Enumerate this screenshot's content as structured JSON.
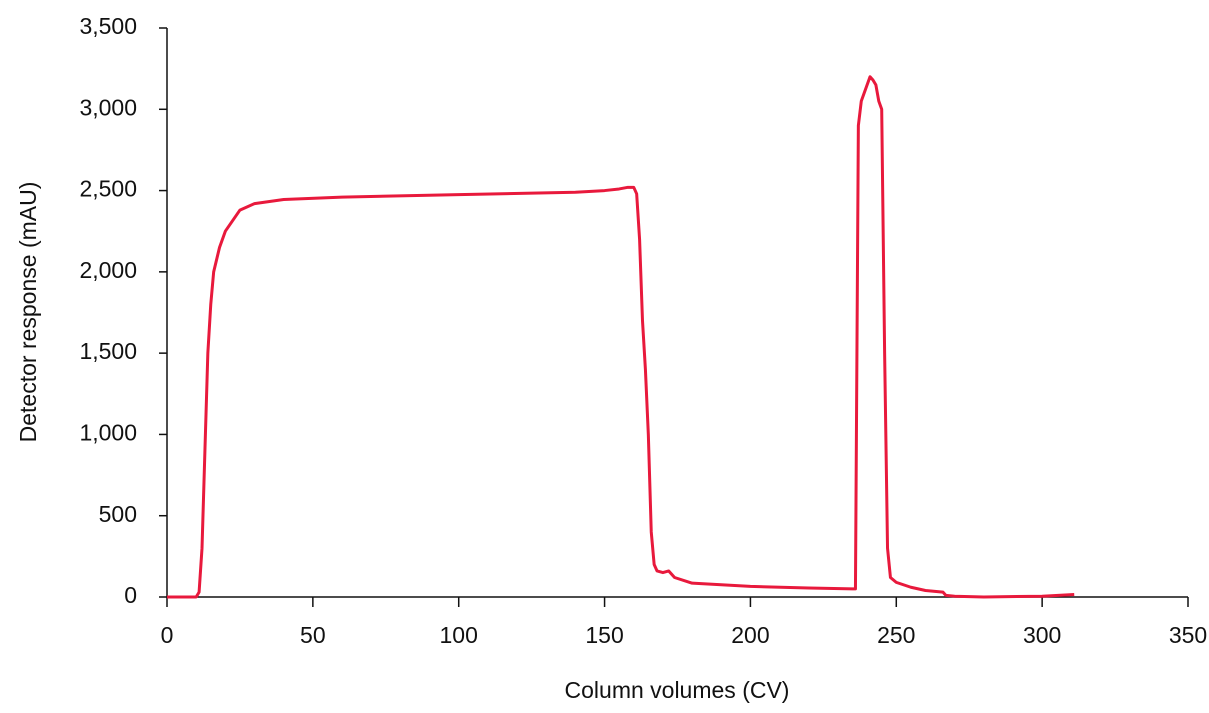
{
  "chart_data": {
    "type": "line",
    "x_label": "Column volumes (CV)",
    "y_label": "Detector response (mAU)",
    "xlim": [
      0,
      350
    ],
    "xticks": [
      0,
      50,
      100,
      150,
      200,
      250,
      300,
      350
    ],
    "ylim": [
      0,
      3500
    ],
    "yticks": [
      0,
      500,
      {
        "value": 1000,
        "label": "1,000"
      },
      {
        "value": 1500,
        "label": "1,500"
      },
      {
        "value": 2000,
        "label": "2,000"
      },
      {
        "value": 2500,
        "label": "2,500"
      },
      {
        "value": 3000,
        "label": "3,000"
      },
      {
        "value": 3500,
        "label": "3,500"
      }
    ],
    "grid": false,
    "series": [
      {
        "color": "#e8193c",
        "x": [
          0,
          10,
          11,
          12,
          13,
          14,
          15,
          16,
          18,
          20,
          25,
          30,
          40,
          60,
          100,
          140,
          150,
          155,
          158,
          160,
          161,
          162,
          163,
          164,
          165,
          166,
          167,
          168,
          170,
          172,
          174,
          180,
          200,
          220,
          235,
          236,
          237,
          238,
          240,
          241,
          242,
          243,
          244,
          245,
          246,
          247,
          248,
          250,
          255,
          260,
          266,
          267,
          270,
          280,
          300,
          311
        ],
        "values": [
          0,
          0,
          30,
          300,
          900,
          1500,
          1800,
          2000,
          2150,
          2250,
          2380,
          2420,
          2445,
          2460,
          2475,
          2490,
          2500,
          2510,
          2520,
          2520,
          2480,
          2200,
          1700,
          1400,
          1000,
          400,
          200,
          160,
          150,
          160,
          120,
          85,
          65,
          55,
          50,
          50,
          2900,
          3050,
          3150,
          3200,
          3180,
          3150,
          3050,
          3000,
          1500,
          300,
          120,
          90,
          60,
          40,
          30,
          10,
          5,
          0,
          5,
          15
        ]
      }
    ]
  }
}
